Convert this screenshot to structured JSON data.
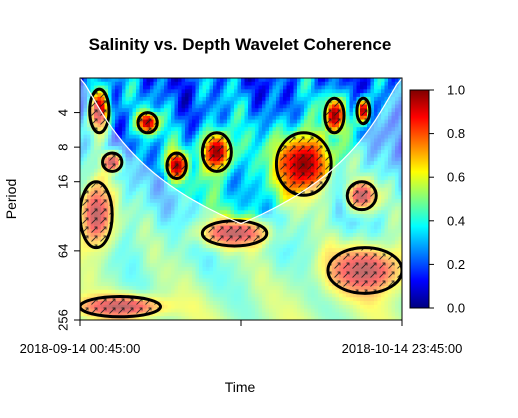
{
  "chart_data": {
    "type": "heatmap",
    "title": "Salinity vs. Depth Wavelet Coherence",
    "xlabel": "Time",
    "ylabel": "Period",
    "x_tick_labels": [
      "2018-09-14 00:45:00",
      "",
      "2018-10-14 23:45:00"
    ],
    "x_range": [
      "2018-09-14 00:45:00",
      "2018-10-14 23:45:00"
    ],
    "y_scale": "log2",
    "y_axis_inverted": true,
    "y_ticks": [
      4,
      8,
      16,
      64,
      256
    ],
    "y_range": [
      2,
      256
    ],
    "colorbar": {
      "ticks": [
        0.0,
        0.2,
        0.4,
        0.6,
        0.8,
        1.0
      ],
      "tick_labels": [
        "0.0",
        "0.2",
        "0.4",
        "0.6",
        "0.8",
        "1.0"
      ],
      "range": [
        0,
        1
      ],
      "colors": [
        "#00007f",
        "#0000ff",
        "#007fff",
        "#00ffff",
        "#7fff7f",
        "#ffff00",
        "#ff7f00",
        "#ff0000",
        "#7f0000"
      ]
    },
    "grid": false,
    "legend": "right",
    "cone_of_influence": true,
    "high_coherence_regions": [
      {
        "t_frac": [
          0.03,
          0.09
        ],
        "period": [
          2.5,
          6
        ]
      },
      {
        "t_frac": [
          0.18,
          0.24
        ],
        "period": [
          4,
          6
        ]
      },
      {
        "t_frac": [
          0.07,
          0.13
        ],
        "period": [
          9,
          13
        ]
      },
      {
        "t_frac": [
          0.27,
          0.33
        ],
        "period": [
          9,
          15
        ]
      },
      {
        "t_frac": [
          0.38,
          0.47
        ],
        "period": [
          6,
          13
        ]
      },
      {
        "t_frac": [
          0.61,
          0.78
        ],
        "period": [
          6,
          21
        ]
      },
      {
        "t_frac": [
          0.76,
          0.82
        ],
        "period": [
          3,
          6
        ]
      },
      {
        "t_frac": [
          0.86,
          0.9
        ],
        "period": [
          3,
          5
        ]
      },
      {
        "t_frac": [
          0.83,
          0.92
        ],
        "period": [
          16,
          28
        ]
      },
      {
        "t_frac": [
          0.38,
          0.58
        ],
        "period": [
          35,
          58
        ]
      },
      {
        "t_frac": [
          0.0,
          0.1
        ],
        "period": [
          16,
          60
        ]
      },
      {
        "t_frac": [
          0.77,
          1.0
        ],
        "period": [
          60,
          150
        ]
      },
      {
        "t_frac": [
          0.0,
          0.25
        ],
        "period": [
          160,
          240
        ]
      }
    ]
  }
}
